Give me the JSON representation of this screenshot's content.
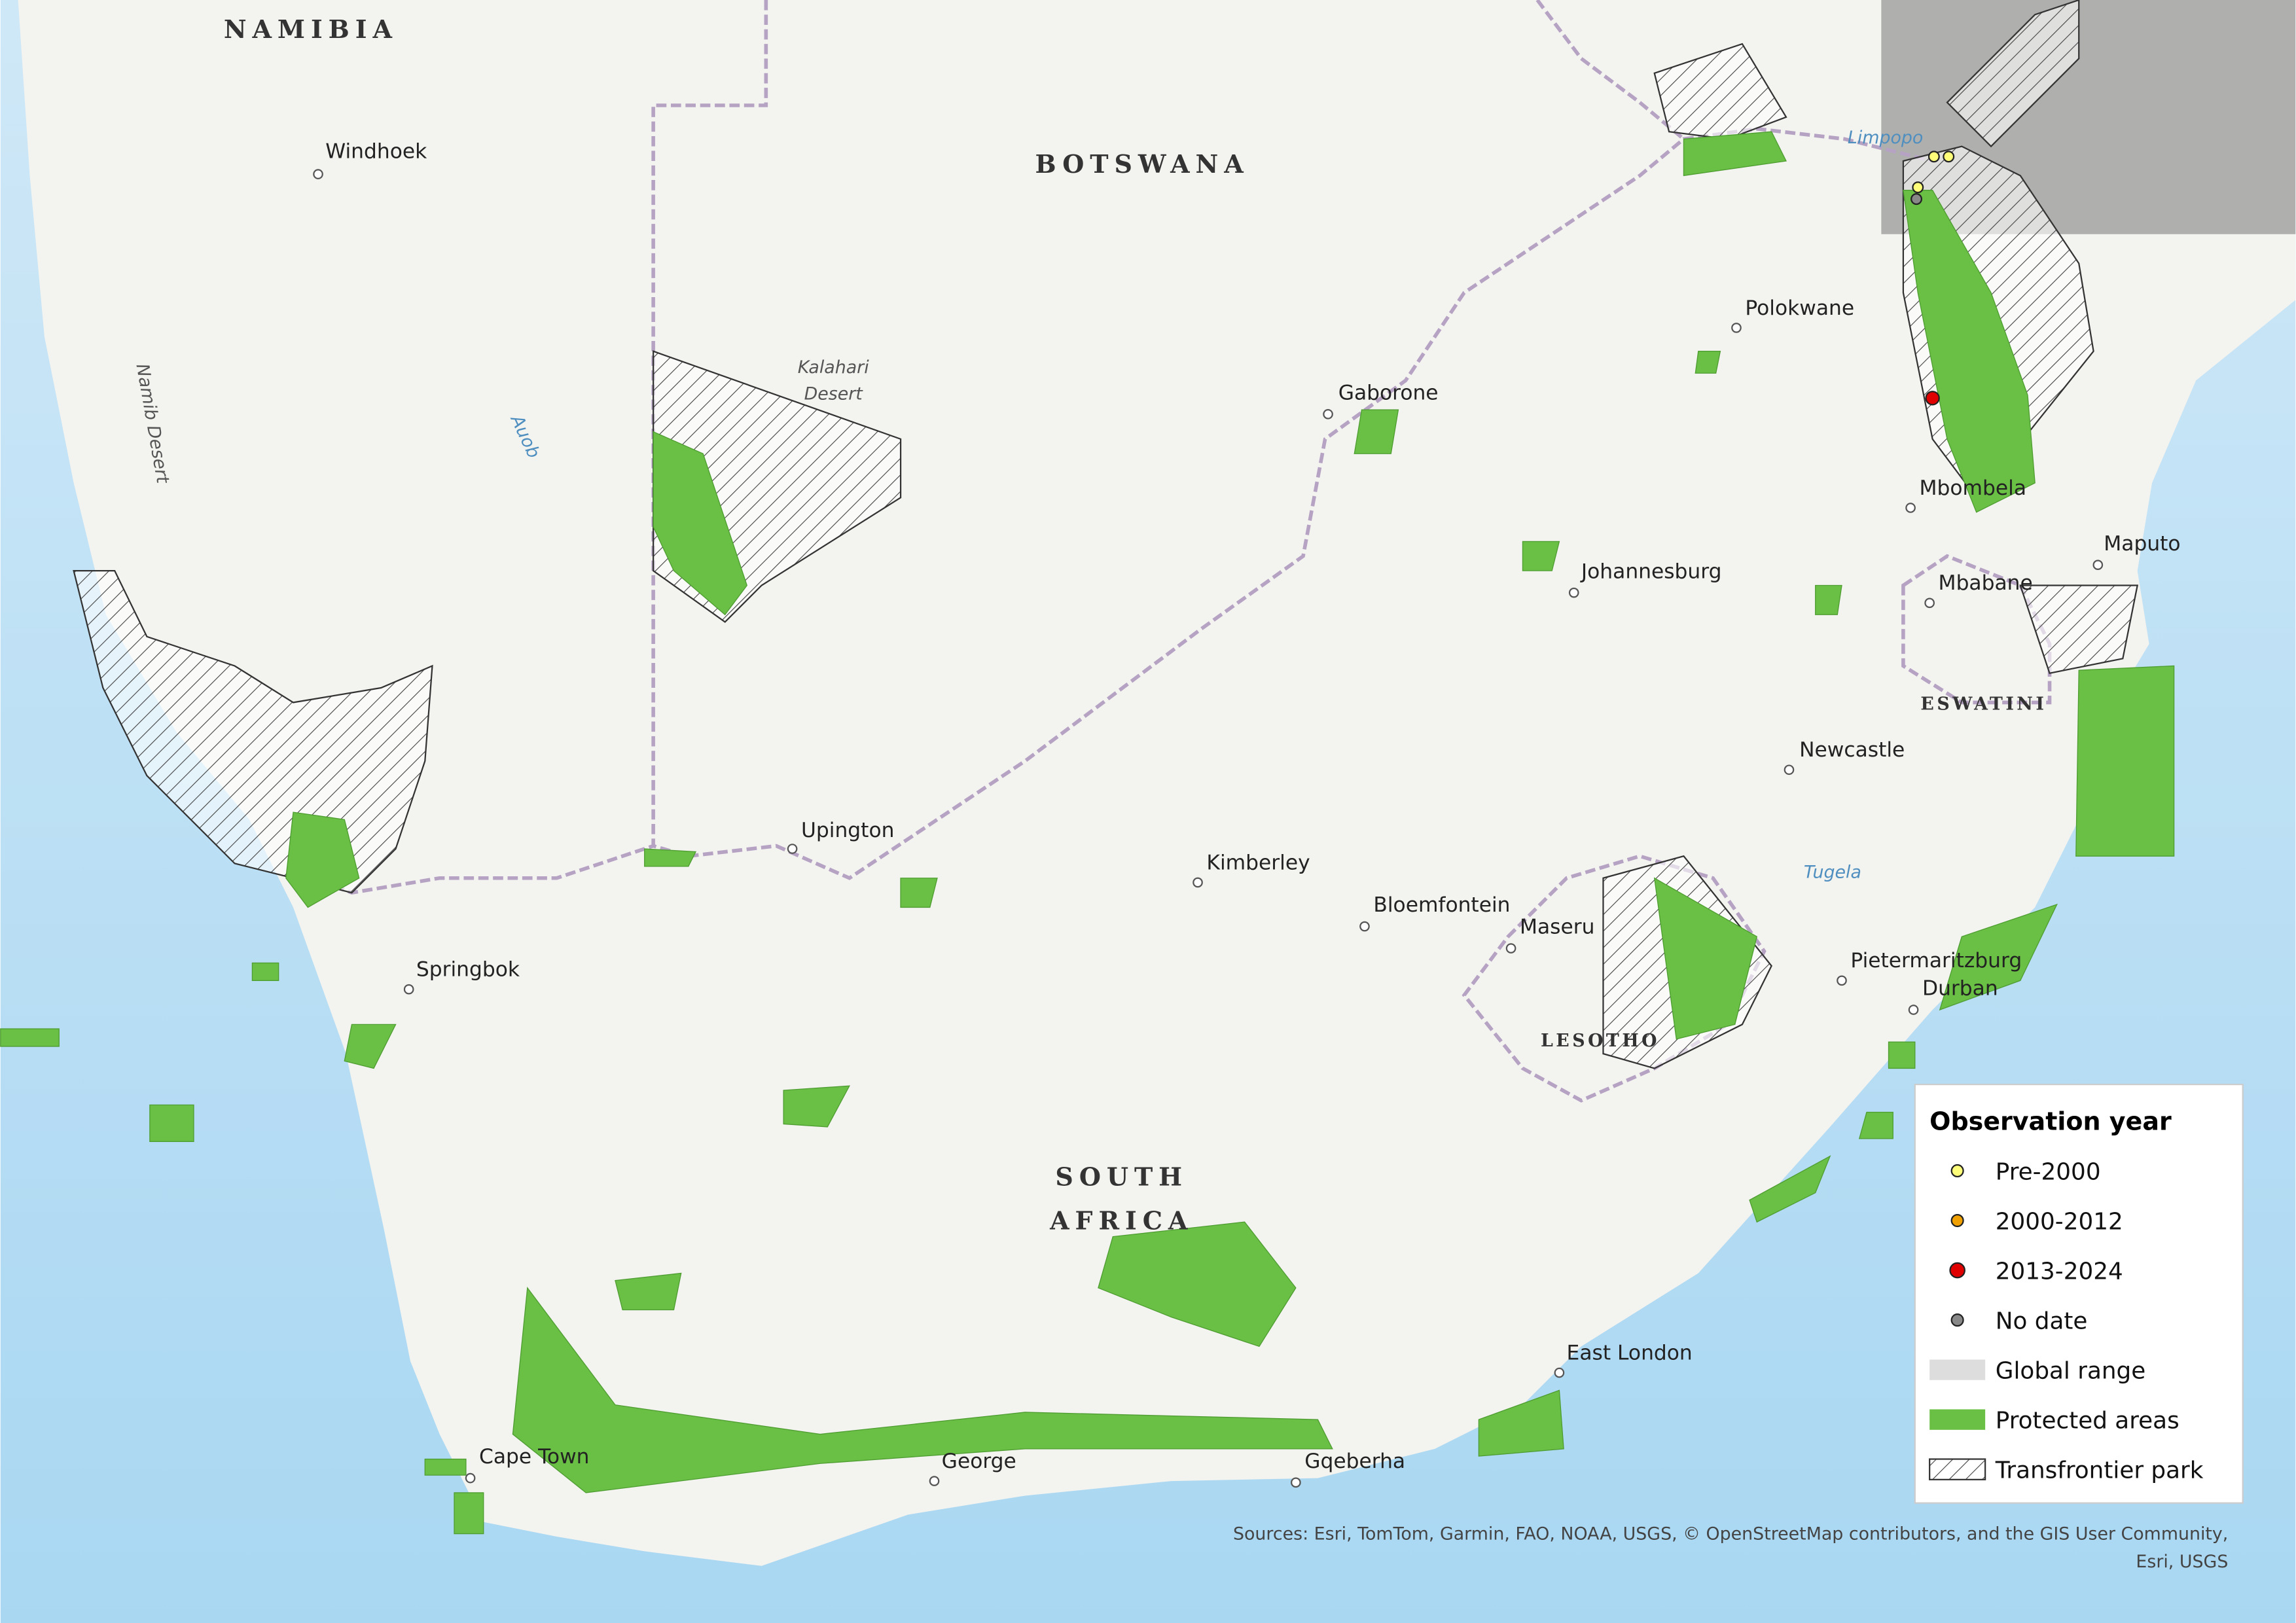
{
  "countries": {
    "namibia": "NAMIBIA",
    "botswana": "BOTSWANA",
    "south_africa": [
      "SOUTH",
      "AFRICA"
    ],
    "lesotho": "LESOTHO",
    "eswatini": "ESWATINI"
  },
  "cities": [
    "Windhoek",
    "Gaborone",
    "Polokwane",
    "Mbombela",
    "Maputo",
    "Johannesburg",
    "Mbabane",
    "Newcastle",
    "Upington",
    "Kimberley",
    "Bloemfontein",
    "Maseru",
    "Pietermaritzburg",
    "Durban",
    "Springbok",
    "East London",
    "Cape Town",
    "George",
    "Gqeberha"
  ],
  "features": {
    "namib": "Namib Desert",
    "kalahari": [
      "Kalahari",
      "Desert"
    ],
    "auob": "Auob",
    "limpopo": "Limpopo",
    "tugela": "Tugela"
  },
  "legend": {
    "title": "Observation year",
    "items": [
      "Pre-2000",
      "2000-2012",
      "2013-2024",
      "No date",
      "Global range",
      "Protected areas",
      "Transfrontier park"
    ]
  },
  "sources": [
    "Sources: Esri, TomTom, Garmin, FAO, NOAA, USGS, © OpenStreetMap contributors, and the GIS User Community,",
    "Esri, USGS"
  ]
}
